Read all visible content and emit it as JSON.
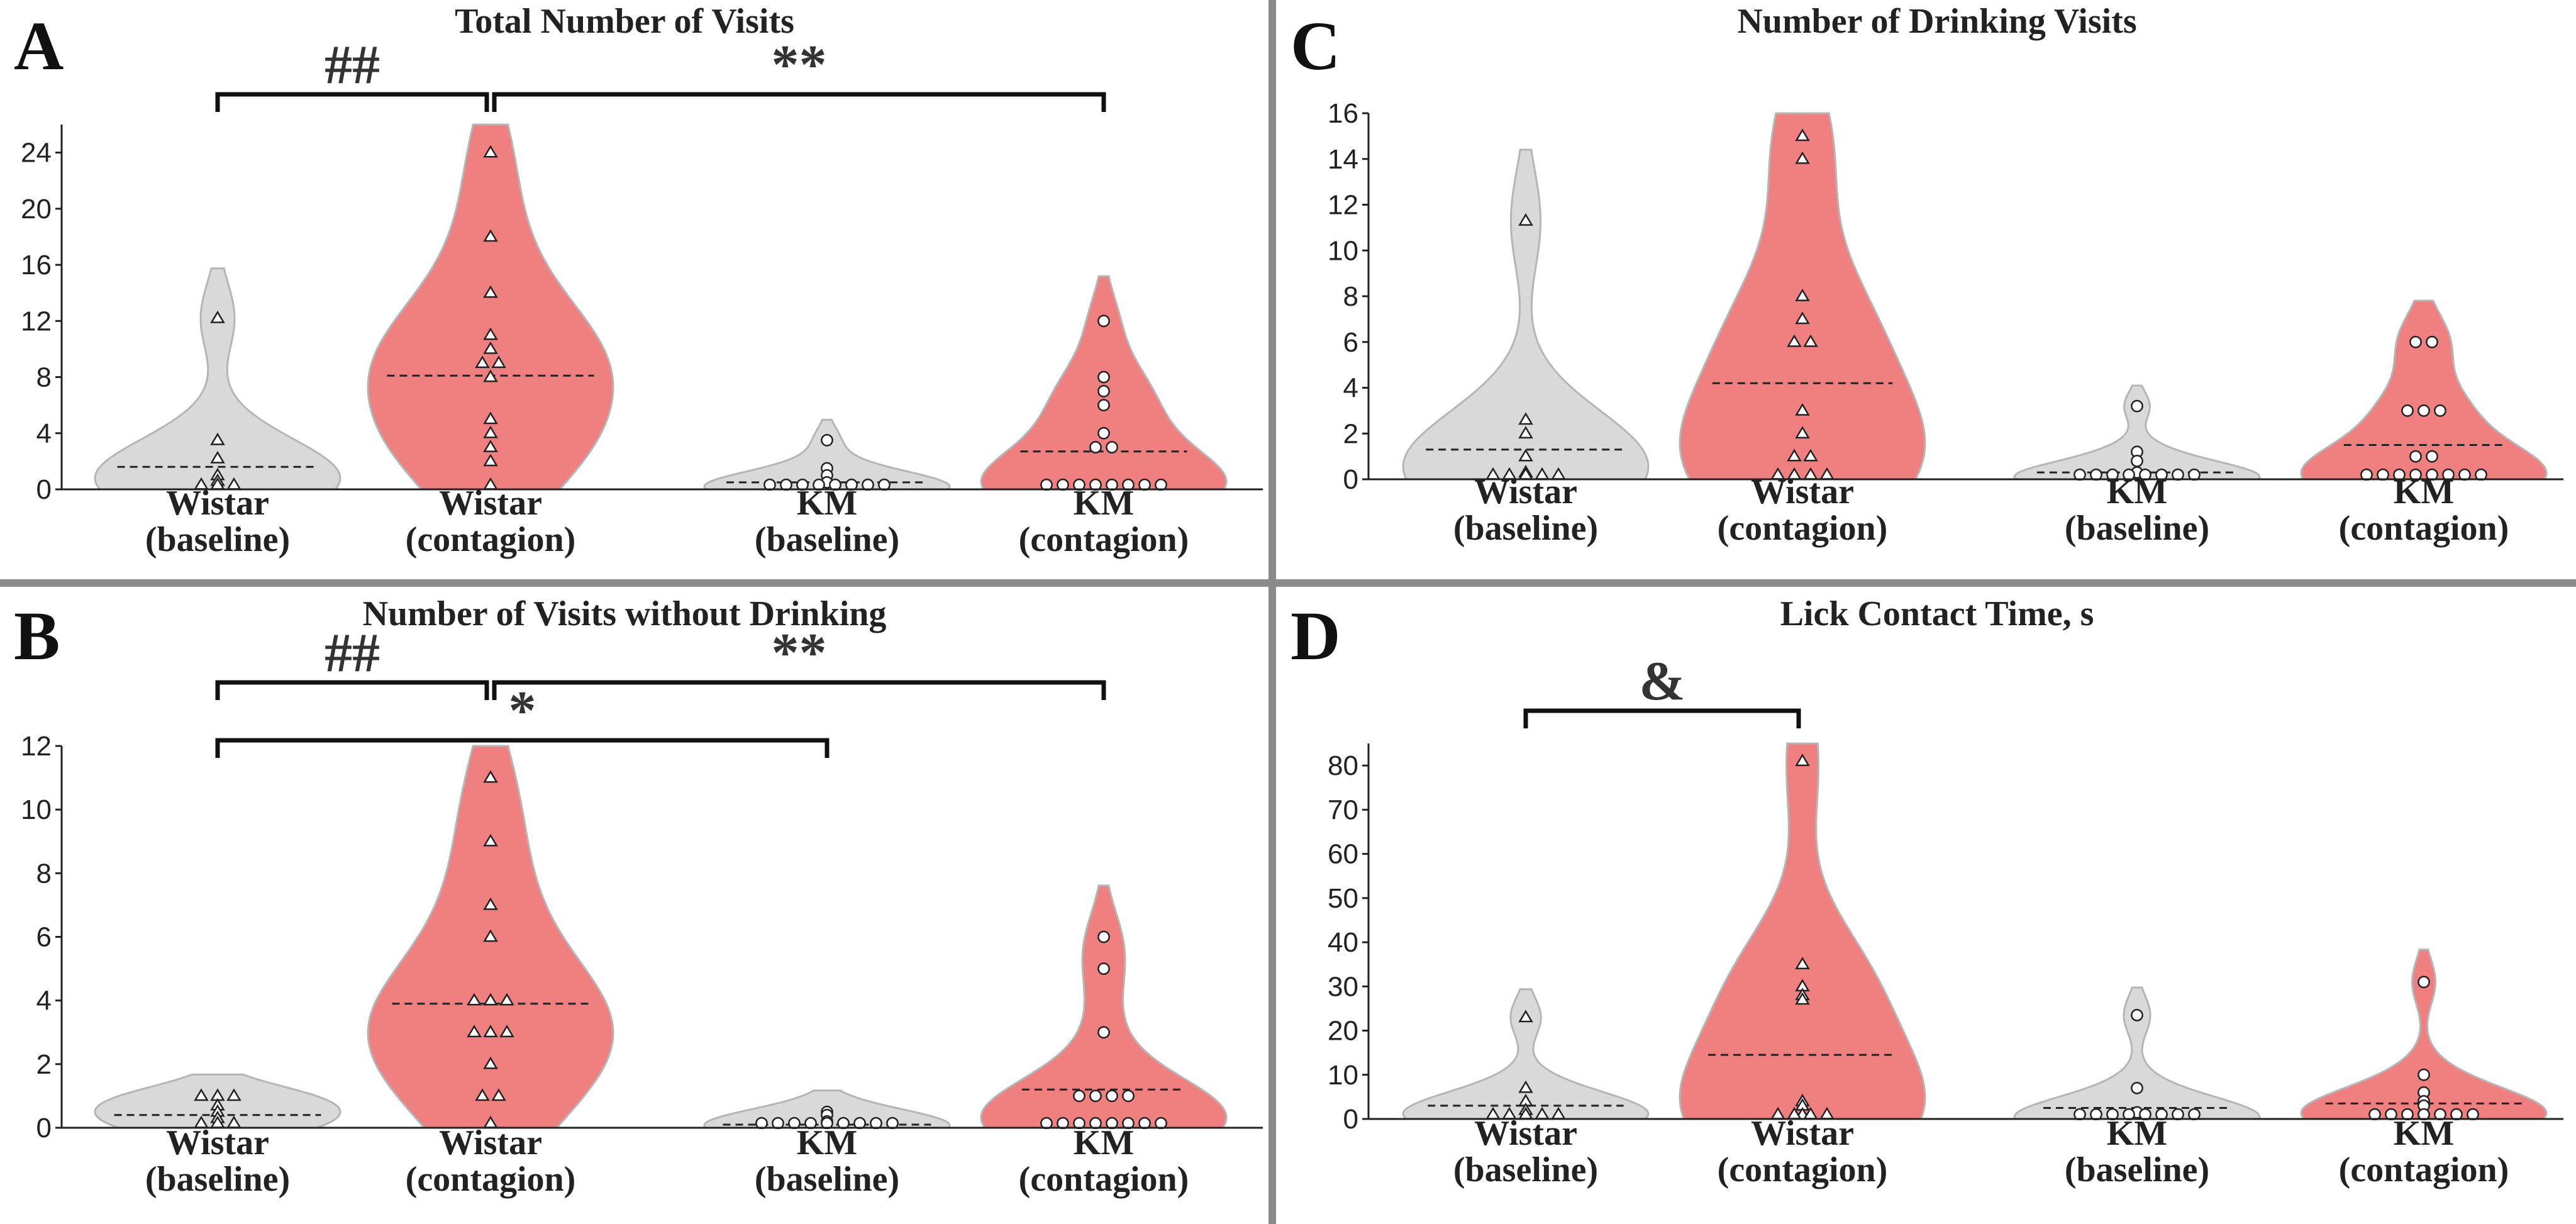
{
  "colors": {
    "baseline_fill": "#d9d9d9",
    "contagion_fill": "#f08080",
    "violin_stroke": "#b5b5b5",
    "axis": "#222222",
    "divider": "#8a8a8a"
  },
  "chart_data": [
    {
      "panel": "A",
      "type": "violin",
      "title": "Total Number of Visits",
      "ylim": [
        0,
        26
      ],
      "yticks": [
        0,
        4,
        8,
        12,
        16,
        20,
        24
      ],
      "categories": [
        "Wistar (baseline)",
        "Wistar (contagion)",
        "KM (baseline)",
        "KM (contagion)"
      ],
      "cat_lines": [
        [
          "Wistar",
          "(baseline)"
        ],
        [
          "Wistar",
          "(contagion)"
        ],
        [
          "KM",
          "(baseline)"
        ],
        [
          "KM",
          "(contagion)"
        ]
      ],
      "markers": [
        "triangle",
        "triangle",
        "circle",
        "circle"
      ],
      "fills": [
        "baseline",
        "contagion",
        "baseline",
        "contagion"
      ],
      "medians": [
        1.6,
        8.1,
        0.5,
        2.7
      ],
      "points": [
        [
          12.2,
          3.5,
          2.2,
          1.0,
          0.6,
          0.3,
          0,
          0,
          0
        ],
        [
          24,
          18,
          14,
          11,
          10,
          9,
          9,
          8,
          5,
          4,
          3,
          2,
          0
        ],
        [
          3.5,
          1.5,
          1.0,
          0.5,
          0,
          0,
          0,
          0,
          0,
          0,
          0,
          0
        ],
        [
          12,
          8,
          7,
          6,
          4,
          3,
          3,
          0,
          0,
          0,
          0,
          0,
          0,
          0,
          0
        ]
      ],
      "significance": [
        {
          "from": 0,
          "to": 1,
          "label": "##",
          "level": 0
        },
        {
          "from": 1,
          "to": 3,
          "label": "**",
          "level": 0
        }
      ]
    },
    {
      "panel": "B",
      "type": "violin",
      "title": "Number of Visits without Drinking",
      "ylim": [
        0,
        12
      ],
      "yticks": [
        0,
        2,
        4,
        6,
        8,
        10,
        12
      ],
      "categories": [
        "Wistar (baseline)",
        "Wistar (contagion)",
        "KM (baseline)",
        "KM (contagion)"
      ],
      "cat_lines": [
        [
          "Wistar",
          "(baseline)"
        ],
        [
          "Wistar",
          "(contagion)"
        ],
        [
          "KM",
          "(baseline)"
        ],
        [
          "KM",
          "(contagion)"
        ]
      ],
      "markers": [
        "triangle",
        "triangle",
        "circle",
        "circle"
      ],
      "fills": [
        "baseline",
        "contagion",
        "baseline",
        "contagion"
      ],
      "medians": [
        0.4,
        3.9,
        0.1,
        1.2
      ],
      "points": [
        [
          1,
          1,
          1,
          0.7,
          0.5,
          0.3,
          0,
          0,
          0
        ],
        [
          11,
          9,
          7,
          6,
          4,
          4,
          4,
          3,
          3,
          3,
          2,
          1,
          1,
          0
        ],
        [
          0.5,
          0.4,
          0.2,
          0,
          0,
          0,
          0,
          0,
          0,
          0,
          0,
          0
        ],
        [
          6,
          5,
          3,
          1,
          1,
          1,
          1,
          0,
          0,
          0,
          0,
          0,
          0,
          0,
          0
        ]
      ],
      "significance": [
        {
          "from": 0,
          "to": 1,
          "label": "##",
          "level": 0
        },
        {
          "from": 1,
          "to": 3,
          "label": "**",
          "level": 0
        },
        {
          "from": 0,
          "to": 2,
          "label": "*",
          "level": 1
        }
      ]
    },
    {
      "panel": "C",
      "type": "violin",
      "title": "Number of Drinking Visits",
      "ylim": [
        0,
        16
      ],
      "yticks": [
        0,
        2,
        4,
        6,
        8,
        10,
        12,
        14,
        16
      ],
      "categories": [
        "Wistar (baseline)",
        "Wistar (contagion)",
        "KM (baseline)",
        "KM (contagion)"
      ],
      "cat_lines": [
        [
          "Wistar",
          "(baseline)"
        ],
        [
          "Wistar",
          "(contagion)"
        ],
        [
          "KM",
          "(baseline)"
        ],
        [
          "KM",
          "(contagion)"
        ]
      ],
      "markers": [
        "triangle",
        "triangle",
        "circle",
        "circle"
      ],
      "fills": [
        "baseline",
        "contagion",
        "baseline",
        "contagion"
      ],
      "medians": [
        1.3,
        4.2,
        0.3,
        1.5
      ],
      "points": [
        [
          11.3,
          2.6,
          2.0,
          1.0,
          0.3,
          0,
          0,
          0,
          0,
          0
        ],
        [
          15,
          14,
          8,
          7,
          6,
          6,
          3,
          2,
          1,
          1,
          0,
          0,
          0,
          0
        ],
        [
          3.2,
          1.2,
          0.8,
          0.3,
          0,
          0,
          0,
          0,
          0,
          0,
          0,
          0
        ],
        [
          6,
          6,
          3,
          3,
          3,
          1,
          1,
          0,
          0,
          0,
          0,
          0,
          0,
          0,
          0
        ]
      ],
      "significance": []
    },
    {
      "panel": "D",
      "type": "violin",
      "title": "Lick Contact Time, s",
      "ylim": [
        0,
        85
      ],
      "yticks": [
        0,
        10,
        20,
        30,
        40,
        50,
        60,
        70,
        80
      ],
      "categories": [
        "Wistar (baseline)",
        "Wistar (contagion)",
        "KM (baseline)",
        "KM (contagion)"
      ],
      "cat_lines": [
        [
          "Wistar",
          "(baseline)"
        ],
        [
          "Wistar",
          "(contagion)"
        ],
        [
          "KM",
          "(baseline)"
        ],
        [
          "KM",
          "(contagion)"
        ]
      ],
      "markers": [
        "triangle",
        "triangle",
        "circle",
        "circle"
      ],
      "fills": [
        "baseline",
        "contagion",
        "baseline",
        "contagion"
      ],
      "medians": [
        3,
        14.5,
        2.5,
        3.5
      ],
      "points": [
        [
          23,
          7,
          4,
          2,
          1,
          0,
          0,
          0,
          0,
          0
        ],
        [
          81,
          35,
          30,
          28,
          27,
          4,
          3,
          1,
          0,
          0,
          0,
          0
        ],
        [
          23.5,
          7,
          1.5,
          0,
          0,
          0,
          0,
          0,
          0,
          0,
          0
        ],
        [
          31,
          10,
          6,
          4,
          3,
          1,
          0,
          0,
          0,
          0,
          0,
          0,
          0
        ]
      ],
      "significance": [
        {
          "from": 0,
          "to": 1,
          "label": "&",
          "level": 0
        }
      ]
    }
  ]
}
